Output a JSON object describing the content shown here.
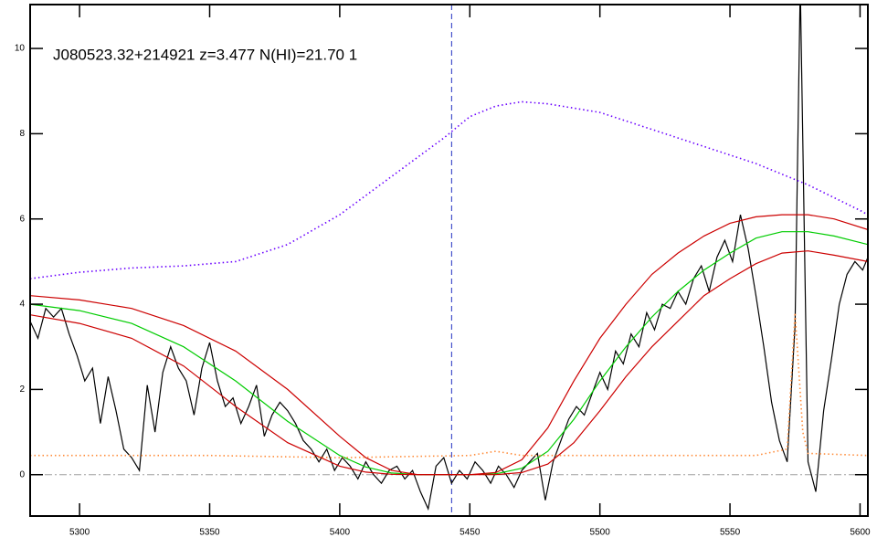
{
  "chart_data": {
    "type": "line",
    "title": "J080523.32+214921 z=3.477 N(HI)=21.70 1",
    "xlim": [
      5281,
      5603
    ],
    "ylim": [
      -0.97,
      11.03
    ],
    "xticks": [
      5300,
      5350,
      5400,
      5450,
      5500,
      5550,
      5600
    ],
    "yticks": [
      0,
      2,
      4,
      6,
      8,
      10
    ],
    "hline": 0,
    "hline_color": "#a0a0a0",
    "vline": 5443,
    "vline_color": "#2030c0",
    "series": [
      {
        "color": "#000000",
        "style": "solid",
        "x": [
          5281,
          5284,
          5287,
          5290,
          5293,
          5296,
          5299,
          5302,
          5305,
          5308,
          5311,
          5314,
          5317,
          5320,
          5323,
          5326,
          5329,
          5332,
          5335,
          5338,
          5341,
          5344,
          5347,
          5350,
          5353,
          5356,
          5359,
          5362,
          5365,
          5368,
          5371,
          5374,
          5377,
          5380,
          5383,
          5386,
          5389,
          5392,
          5395,
          5398,
          5401,
          5404,
          5407,
          5410,
          5413,
          5416,
          5419,
          5422,
          5425,
          5428,
          5431,
          5434,
          5437,
          5440,
          5443,
          5446,
          5449,
          5452,
          5455,
          5458,
          5461,
          5464,
          5467,
          5470,
          5473,
          5476,
          5479,
          5482,
          5485,
          5488,
          5491,
          5494,
          5497,
          5500,
          5503,
          5506,
          5509,
          5512,
          5515,
          5518,
          5521,
          5524,
          5527,
          5530,
          5533,
          5536,
          5539,
          5542,
          5545,
          5548,
          5551,
          5554,
          5557,
          5560,
          5563,
          5566,
          5569,
          5572,
          5575,
          5577,
          5580,
          5583,
          5586,
          5589,
          5592,
          5595,
          5598,
          5601,
          5603
        ],
        "values": [
          3.6,
          3.2,
          3.9,
          3.7,
          3.9,
          3.3,
          2.8,
          2.2,
          2.5,
          1.2,
          2.3,
          1.5,
          0.6,
          0.4,
          0.1,
          2.1,
          1.0,
          2.4,
          3.0,
          2.5,
          2.2,
          1.4,
          2.5,
          3.1,
          2.2,
          1.6,
          1.8,
          1.2,
          1.6,
          2.1,
          0.9,
          1.4,
          1.7,
          1.5,
          1.2,
          0.8,
          0.6,
          0.3,
          0.6,
          0.1,
          0.4,
          0.2,
          -0.1,
          0.3,
          0.0,
          -0.2,
          0.1,
          0.2,
          -0.1,
          0.1,
          -0.4,
          -0.8,
          0.2,
          0.4,
          -0.2,
          0.1,
          -0.1,
          0.3,
          0.1,
          -0.2,
          0.2,
          0.0,
          -0.3,
          0.1,
          0.3,
          0.5,
          -0.6,
          0.3,
          0.8,
          1.3,
          1.6,
          1.4,
          1.9,
          2.4,
          2.0,
          2.9,
          2.6,
          3.3,
          3.0,
          3.8,
          3.4,
          4.0,
          3.9,
          4.3,
          4.0,
          4.6,
          4.9,
          4.3,
          5.1,
          5.5,
          5.0,
          6.1,
          5.3,
          4.2,
          3.0,
          1.7,
          0.8,
          0.3,
          3.5,
          11.5,
          0.3,
          -0.4,
          1.5,
          2.7,
          4.0,
          4.7,
          5.0,
          4.8,
          5.1
        ]
      },
      {
        "color": "#00cc00",
        "style": "solid",
        "x": [
          5281,
          5300,
          5320,
          5340,
          5360,
          5380,
          5400,
          5410,
          5420,
          5430,
          5440,
          5450,
          5460,
          5470,
          5480,
          5490,
          5500,
          5510,
          5520,
          5530,
          5540,
          5550,
          5560,
          5570,
          5580,
          5590,
          5603
        ],
        "values": [
          4.0,
          3.85,
          3.55,
          3.0,
          2.2,
          1.25,
          0.45,
          0.18,
          0.04,
          0,
          0,
          0,
          0.02,
          0.15,
          0.55,
          1.3,
          2.2,
          3.0,
          3.7,
          4.3,
          4.8,
          5.2,
          5.55,
          5.7,
          5.7,
          5.6,
          5.4
        ]
      },
      {
        "color": "#cc0000",
        "style": "solid",
        "x": [
          5281,
          5300,
          5320,
          5340,
          5360,
          5380,
          5400,
          5410,
          5420,
          5430,
          5440,
          5450,
          5460,
          5470,
          5480,
          5490,
          5500,
          5510,
          5520,
          5530,
          5540,
          5550,
          5560,
          5570,
          5580,
          5590,
          5603
        ],
        "values": [
          4.2,
          4.1,
          3.9,
          3.5,
          2.9,
          2.0,
          0.9,
          0.4,
          0.1,
          0,
          0,
          0,
          0.05,
          0.35,
          1.1,
          2.2,
          3.2,
          4.0,
          4.7,
          5.2,
          5.6,
          5.9,
          6.05,
          6.1,
          6.1,
          6.0,
          5.75
        ]
      },
      {
        "color": "#cc0000",
        "style": "solid",
        "x": [
          5281,
          5300,
          5320,
          5340,
          5360,
          5380,
          5400,
          5410,
          5420,
          5430,
          5440,
          5450,
          5460,
          5470,
          5480,
          5490,
          5500,
          5510,
          5520,
          5530,
          5540,
          5550,
          5560,
          5570,
          5580,
          5590,
          5603
        ],
        "values": [
          3.75,
          3.55,
          3.2,
          2.55,
          1.6,
          0.75,
          0.2,
          0.06,
          0.01,
          0,
          0,
          0,
          0,
          0.05,
          0.25,
          0.75,
          1.5,
          2.3,
          3.0,
          3.6,
          4.2,
          4.6,
          4.95,
          5.2,
          5.25,
          5.15,
          5.0
        ]
      },
      {
        "color": "#6a00ff",
        "style": "dotted",
        "x": [
          5281,
          5300,
          5320,
          5340,
          5360,
          5380,
          5400,
          5420,
          5440,
          5450,
          5460,
          5470,
          5480,
          5500,
          5520,
          5540,
          5560,
          5580,
          5600,
          5603
        ],
        "values": [
          4.6,
          4.75,
          4.85,
          4.9,
          5.0,
          5.4,
          6.1,
          7.0,
          7.9,
          8.4,
          8.65,
          8.75,
          8.7,
          8.5,
          8.1,
          7.7,
          7.3,
          6.8,
          6.2,
          6.1
        ]
      },
      {
        "color": "#ff8c3a",
        "style": "dotted",
        "x": [
          5281,
          5350,
          5400,
          5450,
          5460,
          5470,
          5560,
          5572,
          5575,
          5578,
          5580,
          5603
        ],
        "values": [
          0.45,
          0.45,
          0.4,
          0.45,
          0.55,
          0.45,
          0.45,
          0.6,
          3.8,
          1.0,
          0.5,
          0.45
        ]
      }
    ]
  }
}
